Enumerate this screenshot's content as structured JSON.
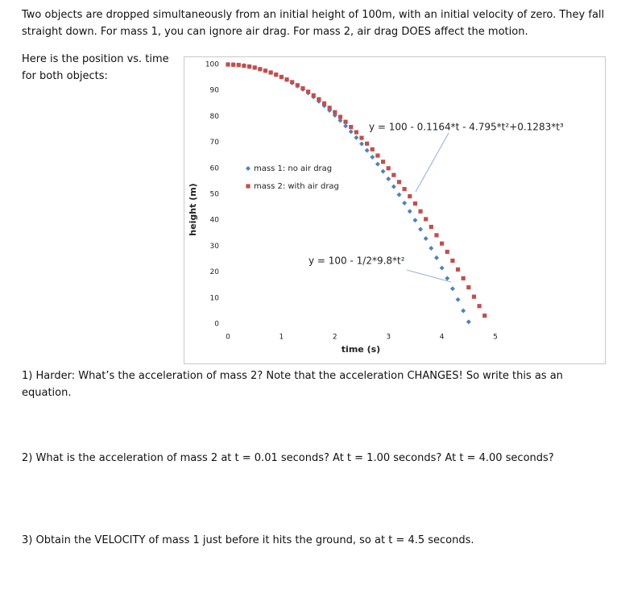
{
  "intro": "Two objects are dropped simultaneously from an initial height of 100m, with an initial velocity of zero.  They fall straight down. For mass 1, you can ignore air drag.  For mass 2, air drag DOES affect the motion.",
  "chart_caption": "Here is the position vs. time for both objects:",
  "chart_data": {
    "type": "scatter",
    "xlabel": "time (s)",
    "ylabel": "height (m)",
    "xlim": [
      0,
      5
    ],
    "xticks": [
      0,
      1,
      2,
      3,
      4,
      5
    ],
    "ylim": [
      0,
      100
    ],
    "yticks": [
      0,
      10,
      20,
      30,
      40,
      50,
      60,
      70,
      80,
      90,
      100
    ],
    "grid": false,
    "series": [
      {
        "name": "mass 1: no air drag",
        "color": "#4f81bd",
        "marker": "diamond",
        "x": [
          0,
          0.1,
          0.2,
          0.3,
          0.4,
          0.5,
          0.6,
          0.7,
          0.8,
          0.9,
          1,
          1.1,
          1.2,
          1.3,
          1.4,
          1.5,
          1.6,
          1.7,
          1.8,
          1.9,
          2,
          2.1,
          2.2,
          2.3,
          2.4,
          2.5,
          2.6,
          2.7,
          2.8,
          2.9,
          3,
          3.1,
          3.2,
          3.3,
          3.4,
          3.5,
          3.6,
          3.7,
          3.8,
          3.9,
          4,
          4.1,
          4.2,
          4.3,
          4.4,
          4.5
        ],
        "values": [
          100,
          100.0,
          99.8,
          99.6,
          99.2,
          98.8,
          98.2,
          97.6,
          96.9,
          96.0,
          95.1,
          94.1,
          92.9,
          91.7,
          90.4,
          89.0,
          87.5,
          85.8,
          84.1,
          82.3,
          80.4,
          78.4,
          76.3,
          74.1,
          71.8,
          69.4,
          66.9,
          64.3,
          61.6,
          58.8,
          55.9,
          52.9,
          49.8,
          46.6,
          43.4,
          40.0,
          36.5,
          32.9,
          29.2,
          25.5,
          21.6,
          17.6,
          13.6,
          9.4,
          5.1,
          0.8
        ]
      },
      {
        "name": "mass 2: with air drag",
        "color": "#c0504d",
        "marker": "square",
        "x": [
          0,
          0.1,
          0.2,
          0.3,
          0.4,
          0.5,
          0.6,
          0.7,
          0.8,
          0.9,
          1,
          1.1,
          1.2,
          1.3,
          1.4,
          1.5,
          1.6,
          1.7,
          1.8,
          1.9,
          2,
          2.1,
          2.2,
          2.3,
          2.4,
          2.5,
          2.6,
          2.7,
          2.8,
          2.9,
          3,
          3.1,
          3.2,
          3.3,
          3.4,
          3.5,
          3.6,
          3.7,
          3.8,
          3.9,
          4,
          4.1,
          4.2,
          4.3,
          4.4,
          4.5,
          4.6,
          4.7,
          4.8
        ],
        "values": [
          100,
          99.9,
          99.8,
          99.5,
          99.2,
          98.8,
          98.2,
          97.6,
          96.9,
          96.1,
          95.2,
          94.2,
          93.2,
          92.0,
          90.8,
          89.5,
          88.1,
          86.6,
          85.0,
          83.3,
          81.6,
          79.8,
          77.9,
          75.9,
          73.9,
          71.7,
          69.5,
          67.3,
          64.9,
          62.5,
          60.0,
          57.4,
          54.7,
          52.0,
          49.2,
          46.4,
          43.4,
          40.4,
          37.4,
          34.2,
          31.0,
          27.8,
          24.4,
          21.0,
          17.6,
          14.1,
          10.5,
          6.9,
          3.2
        ]
      }
    ],
    "annotations": [
      "y = 100 - 0.1164*t - 4.795*t²+0.1283*t³",
      "y = 100 - 1/2*9.8*t²"
    ]
  },
  "questions": [
    "1) Harder: What’s the acceleration of mass 2? Note that the acceleration CHANGES! So write this as an equation.",
    "2) What is the acceleration of mass 2 at t = 0.01 seconds?  At t = 1.00 seconds?  At t = 4.00 seconds?",
    "3) Obtain the VELOCITY of mass 1 just before it hits the ground, so at t = 4.5 seconds."
  ]
}
